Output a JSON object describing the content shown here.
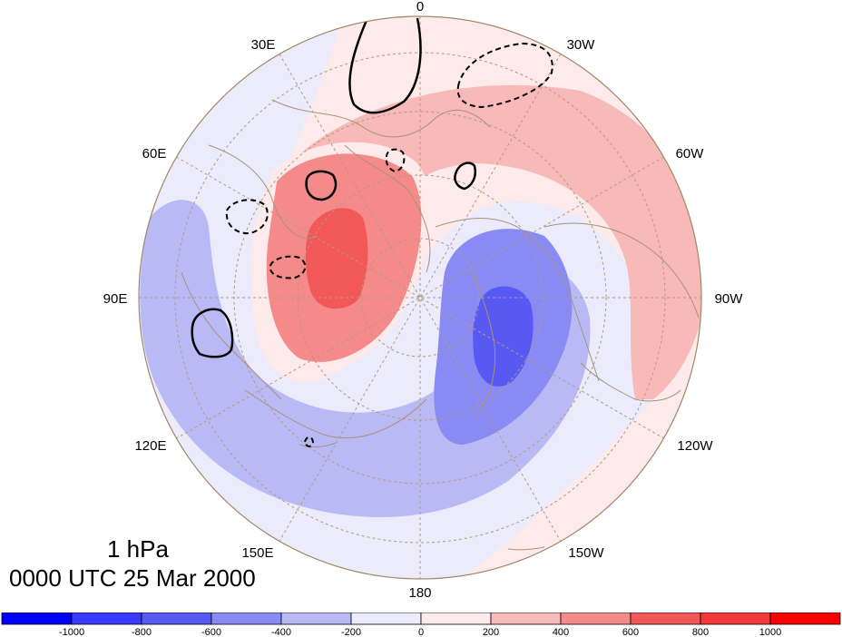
{
  "map": {
    "projection": "north-polar-stereographic",
    "meridian_labels": [
      "0",
      "30W",
      "60W",
      "90W",
      "120W",
      "150W",
      "180",
      "150E",
      "120E",
      "90E",
      "60E",
      "30E"
    ],
    "fill_colors": {
      "strong_blue": "#5858f2",
      "blue": "#8a8af4",
      "light_blue": "#b9b9f5",
      "pale_blue": "#ebebfb",
      "pale_red": "#fdebeb",
      "light_red": "#f8b9b9",
      "red": "#f48a8a",
      "strong_red": "#f25858",
      "coast": "#a8927a",
      "grid": "#b29b7c"
    }
  },
  "title": {
    "level": "1 hPa",
    "time": "0000 UTC 25 Mar 2000"
  },
  "colorbar": {
    "labels": [
      "-1000",
      "-800",
      "-600",
      "-400",
      "-200",
      "0",
      "200",
      "400",
      "600",
      "800",
      "1000"
    ],
    "colors": [
      "#0000ff",
      "#3a3af8",
      "#5858f2",
      "#8a8af4",
      "#b9b9f5",
      "#ebebfb",
      "#fdebeb",
      "#f8b9b9",
      "#f48a8a",
      "#f25858",
      "#f23a3a",
      "#ff0000"
    ]
  }
}
